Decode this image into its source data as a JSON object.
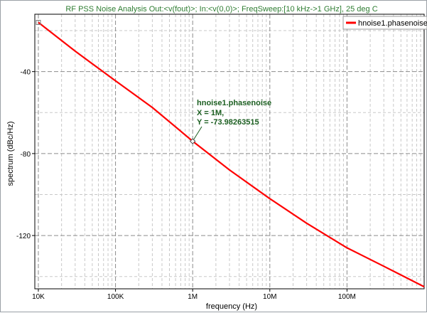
{
  "chart_data": {
    "type": "line",
    "title": "RF PSS Noise Analysis Out:<v(fout)>; In:<v(0,0)>; FreqSweep:[10 kHz->1 GHz], 25 deg C",
    "xlabel": "frequency (Hz)",
    "ylabel": "spectrum (dBc/Hz)",
    "x_scale": "log",
    "xlim": [
      9000,
      1000000000
    ],
    "ylim": [
      -146,
      -12
    ],
    "x_ticks": [
      {
        "value": 10000,
        "label": "10K"
      },
      {
        "value": 100000,
        "label": "100K"
      },
      {
        "value": 1000000,
        "label": "1M"
      },
      {
        "value": 10000000,
        "label": "10M"
      },
      {
        "value": 100000000,
        "label": "100M"
      }
    ],
    "y_ticks": [
      {
        "value": -40,
        "label": "-40"
      },
      {
        "value": -80,
        "label": "-80"
      },
      {
        "value": -120,
        "label": "-120"
      }
    ],
    "grid": true,
    "legend_position": "top-right",
    "series": [
      {
        "name": "hnoise1.phasenoise",
        "color": "#ff0000",
        "x": [
          10000,
          30000,
          100000,
          300000,
          1000000,
          3000000,
          10000000,
          30000000,
          100000000,
          300000000,
          1000000000
        ],
        "y": [
          -16,
          -30,
          -44.5,
          -57.5,
          -73.98,
          -88,
          -102,
          -114,
          -126,
          -135,
          -145
        ]
      }
    ],
    "annotation": {
      "series": "hnoise1.phasenoise",
      "x": 1000000,
      "y": -73.98263515,
      "lines": [
        "hnoise1.phasenoise",
        "X = 1M,",
        "Y = -73.98263515"
      ]
    },
    "start_marker": {
      "x": 10000,
      "y": -16
    }
  }
}
